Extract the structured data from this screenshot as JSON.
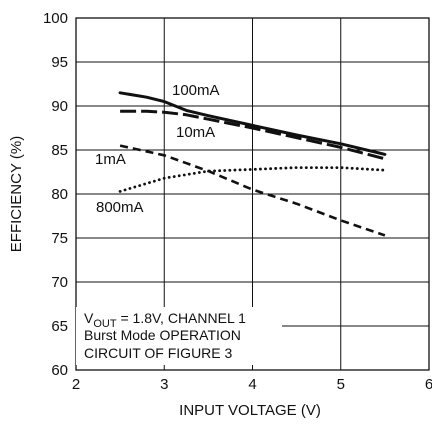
{
  "chart_data": {
    "type": "line",
    "xlabel": "INPUT VOLTAGE (V)",
    "ylabel": "EFFICIENCY (%)",
    "xlim": [
      2,
      6
    ],
    "ylim": [
      60,
      100
    ],
    "x_ticks": [
      2,
      3,
      4,
      5,
      6
    ],
    "y_ticks": [
      60,
      65,
      70,
      75,
      80,
      85,
      90,
      95,
      100
    ],
    "grid": true,
    "series": [
      {
        "name": "100mA",
        "style": "solid",
        "x": [
          2.5,
          2.8,
          3.0,
          3.25,
          3.5,
          4.0,
          4.5,
          5.0,
          5.5
        ],
        "y": [
          91.5,
          91.0,
          90.5,
          89.5,
          88.9,
          87.8,
          86.7,
          85.7,
          84.5
        ]
      },
      {
        "name": "10mA",
        "style": "long-dash",
        "x": [
          2.5,
          2.8,
          3.0,
          3.25,
          3.5,
          4.0,
          4.5,
          5.0,
          5.5
        ],
        "y": [
          89.4,
          89.4,
          89.3,
          89.0,
          88.5,
          87.5,
          86.4,
          85.3,
          84.0
        ]
      },
      {
        "name": "1mA",
        "style": "short-dash",
        "x": [
          2.5,
          3.0,
          3.5,
          4.0,
          4.5,
          5.0,
          5.5
        ],
        "y": [
          85.5,
          84.4,
          82.6,
          80.5,
          78.9,
          77.0,
          75.3
        ]
      },
      {
        "name": "800mA",
        "style": "dotted",
        "x": [
          2.5,
          3.0,
          3.5,
          4.0,
          4.5,
          5.0,
          5.5
        ],
        "y": [
          80.3,
          81.8,
          82.6,
          82.8,
          83.0,
          83.0,
          82.7
        ]
      }
    ],
    "annotations": {
      "label_100mA": "100mA",
      "label_10mA": "10mA",
      "label_1mA": "1mA",
      "label_800mA": "800mA",
      "note_line1_main": "V",
      "note_line1_sub": "OUT",
      "note_line1_rest": " = 1.8V, CHANNEL 1",
      "note_line2": "Burst Mode OPERATION",
      "note_line3": "CIRCUIT OF FIGURE 3"
    }
  }
}
